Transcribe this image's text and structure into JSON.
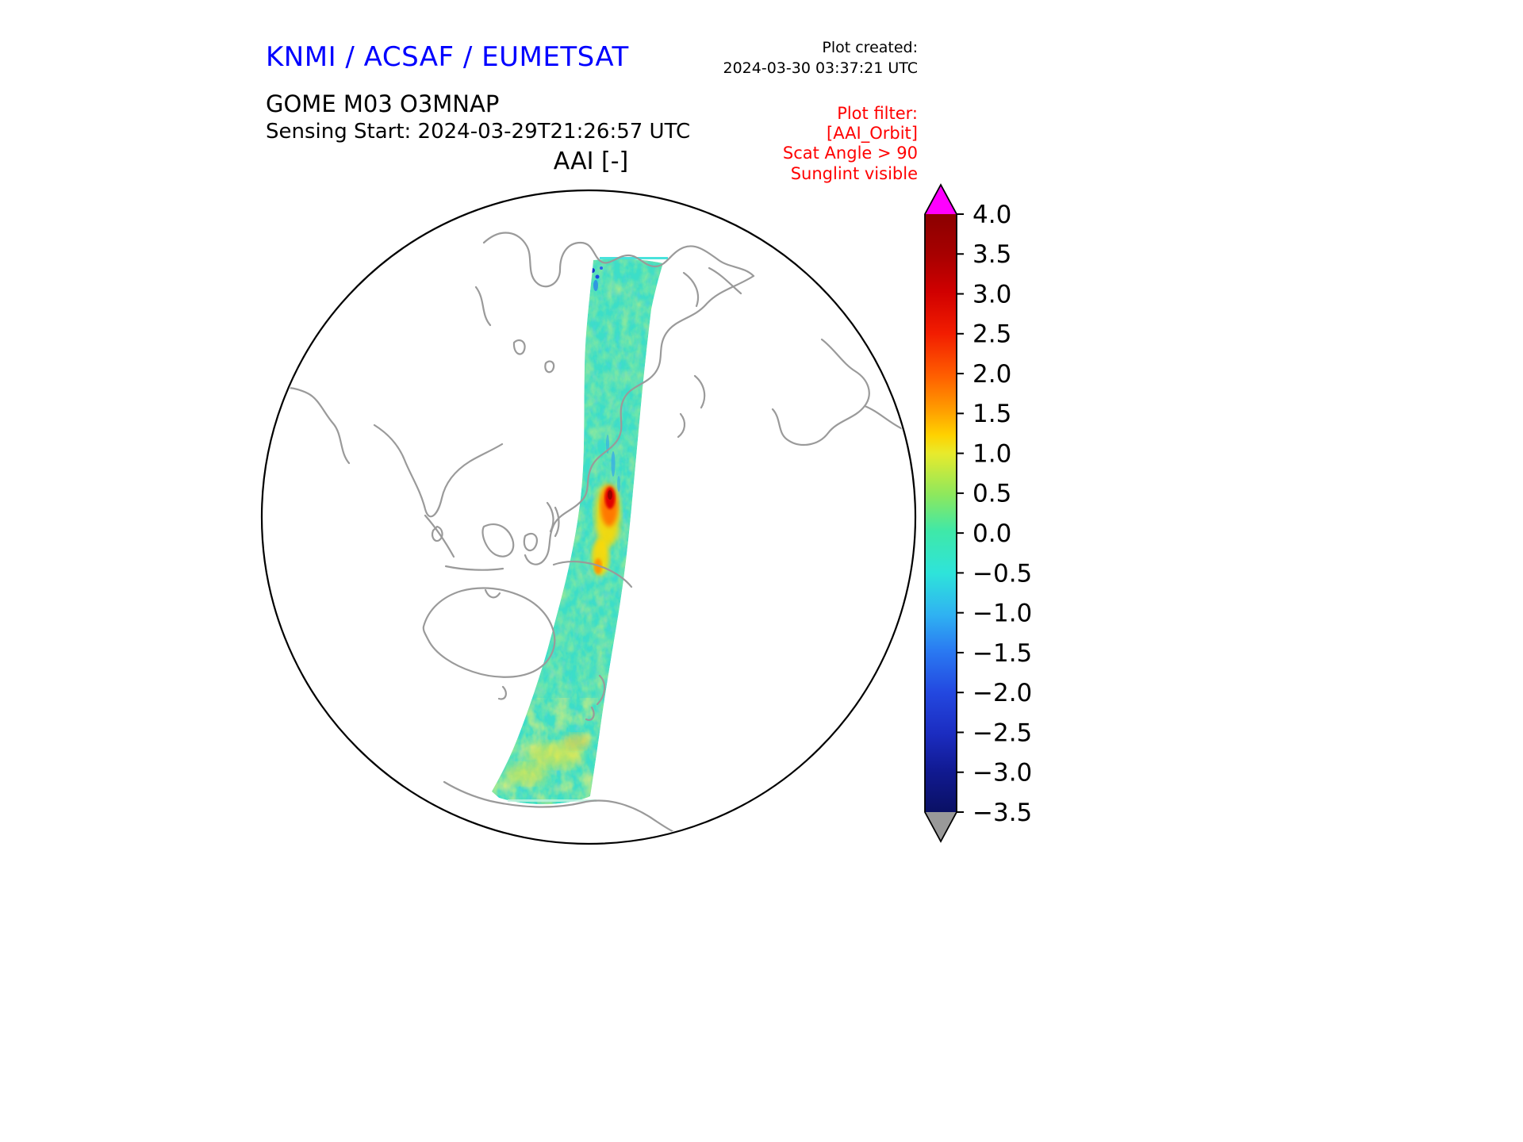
{
  "header": {
    "agency_title": "KNMI / ACSAF / EUMETSAT",
    "agency_title_color": "#0000ff",
    "plot_created_label": "Plot created:",
    "plot_created_value": "2024-03-30 03:37:21 UTC",
    "product_line": "GOME M03 O3MNAP",
    "sensing_line": "Sensing Start: 2024-03-29T21:26:57 UTC",
    "axes_title": "AAI [-]",
    "plot_filter": {
      "color": "#ff0000",
      "line1": "Plot filter:",
      "line2": "[AAI_Orbit]",
      "line3": "Scat Angle > 90",
      "line4": "Sunglint visible"
    }
  },
  "chart_data": {
    "type": "heatmap",
    "title": "AAI [-]",
    "variable": "AAI",
    "units": "-",
    "projection": "orthographic-globe",
    "coastline_color": "#9a9a9a",
    "globe_outline_color": "#000000",
    "colorbar": {
      "orientation": "vertical",
      "vmin": -3.5,
      "vmax": 4.0,
      "tick_step": 0.5,
      "tick_labels": [
        "4.0",
        "3.5",
        "3.0",
        "2.5",
        "2.0",
        "1.5",
        "1.0",
        "0.5",
        "0.0",
        "−0.5",
        "−1.0",
        "−1.5",
        "−2.0",
        "−2.5",
        "−3.0",
        "−3.5"
      ],
      "over_arrow_color": "#ff00ff",
      "under_arrow_color": "#999999",
      "gradient": [
        {
          "offset": "0%",
          "color": "#8b0000"
        },
        {
          "offset": "7%",
          "color": "#a80000"
        },
        {
          "offset": "13%",
          "color": "#d00000"
        },
        {
          "offset": "20%",
          "color": "#f21d00"
        },
        {
          "offset": "27%",
          "color": "#ff5e00"
        },
        {
          "offset": "33%",
          "color": "#ffa000"
        },
        {
          "offset": "37%",
          "color": "#ffd200"
        },
        {
          "offset": "40%",
          "color": "#e8ea2c"
        },
        {
          "offset": "47%",
          "color": "#8ce85e"
        },
        {
          "offset": "53%",
          "color": "#3fe8a8"
        },
        {
          "offset": "60%",
          "color": "#2ee4da"
        },
        {
          "offset": "67%",
          "color": "#2fb2f2"
        },
        {
          "offset": "73%",
          "color": "#2a7af2"
        },
        {
          "offset": "80%",
          "color": "#2348e0"
        },
        {
          "offset": "87%",
          "color": "#1b2cc0"
        },
        {
          "offset": "93%",
          "color": "#111a92"
        },
        {
          "offset": "100%",
          "color": "#0a1064"
        }
      ]
    },
    "swath": {
      "base_color": "#3cdec8",
      "dominant_value_range": [
        -0.5,
        0.5
      ],
      "features": [
        {
          "name": "red-hotspot-mid-swath",
          "approx_value": 3.0
        },
        {
          "name": "orange-yellow-patch-below-hotspot",
          "approx_value": 1.5
        },
        {
          "name": "yellow-mottling-near-bottom",
          "approx_value": 1.0
        },
        {
          "name": "dark-blue-specks-at-swath-top",
          "approx_value": -2.5
        }
      ]
    }
  }
}
